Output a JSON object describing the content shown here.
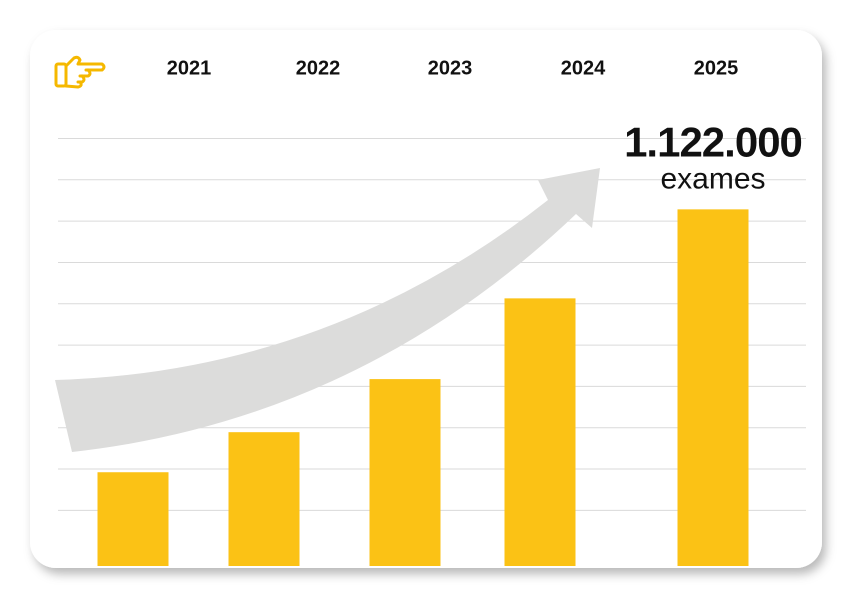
{
  "chart_data": {
    "type": "bar",
    "categories": [
      "2021",
      "2022",
      "2023",
      "2024",
      "2025"
    ],
    "values": [
      295000,
      421000,
      588000,
      842000,
      1122000
    ],
    "value_labels": [
      null,
      null,
      null,
      null,
      "1.122.000"
    ],
    "annotation": "exames",
    "color": "#fbc215",
    "ylim": [
      0,
      1400000
    ],
    "yticks": [
      175000,
      305000,
      435000,
      565000,
      695000,
      825000,
      955000,
      1085000,
      1215000,
      1345000
    ],
    "grid": true
  }
}
